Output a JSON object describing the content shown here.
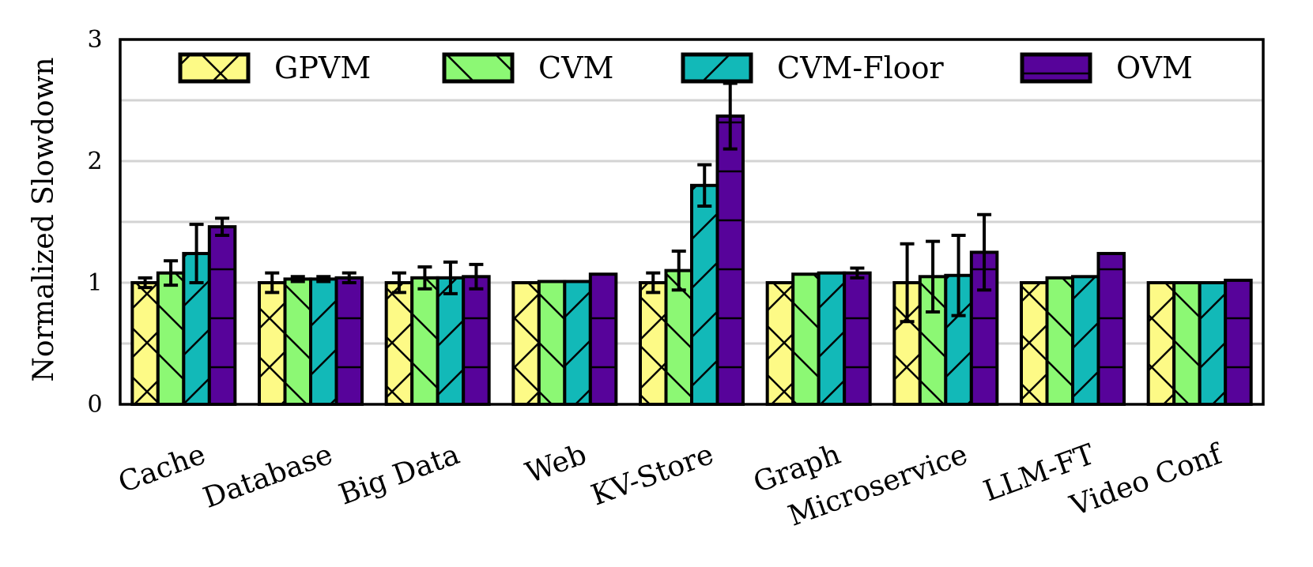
{
  "chart_data": {
    "type": "bar",
    "ylabel": "Normalized Slowdown",
    "xlabel": "",
    "ylim": [
      0,
      3
    ],
    "yticks": [
      0,
      1,
      2,
      3
    ],
    "gridlines": [
      0.5,
      1,
      1.5,
      2,
      2.5
    ],
    "legend_position": "top",
    "categories": [
      "Cache",
      "Database",
      "Big Data",
      "Web",
      "KV-Store",
      "Graph",
      "Microservice",
      "LLM-FT",
      "Video Conf"
    ],
    "series": [
      {
        "name": "GPVM",
        "color": "#fdfa86",
        "hatch": "x",
        "values": [
          1.0,
          1.0,
          1.0,
          1.0,
          1.0,
          1.0,
          1.0,
          1.0,
          1.0
        ],
        "errors": [
          0.04,
          0.08,
          0.08,
          0.0,
          0.08,
          0.0,
          0.32,
          0.0,
          0.0
        ]
      },
      {
        "name": "CVM",
        "color": "#8cf874",
        "hatch": "\\",
        "values": [
          1.08,
          1.03,
          1.04,
          1.01,
          1.1,
          1.07,
          1.05,
          1.04,
          1.0
        ],
        "errors": [
          0.1,
          0.02,
          0.09,
          0.0,
          0.16,
          0.0,
          0.29,
          0.0,
          0.0
        ]
      },
      {
        "name": "CVM-Floor",
        "color": "#12b9b8",
        "hatch": "/",
        "values": [
          1.24,
          1.03,
          1.04,
          1.01,
          1.8,
          1.08,
          1.06,
          1.05,
          1.0
        ],
        "errors": [
          0.24,
          0.02,
          0.13,
          0.0,
          0.17,
          0.0,
          0.33,
          0.0,
          0.0
        ]
      },
      {
        "name": "OVM",
        "color": "#57039a",
        "hatch": "-",
        "values": [
          1.46,
          1.04,
          1.05,
          1.07,
          2.37,
          1.08,
          1.25,
          1.24,
          1.02
        ],
        "errors": [
          0.07,
          0.04,
          0.1,
          0.0,
          0.27,
          0.04,
          0.31,
          0.0,
          0.0
        ]
      }
    ]
  }
}
